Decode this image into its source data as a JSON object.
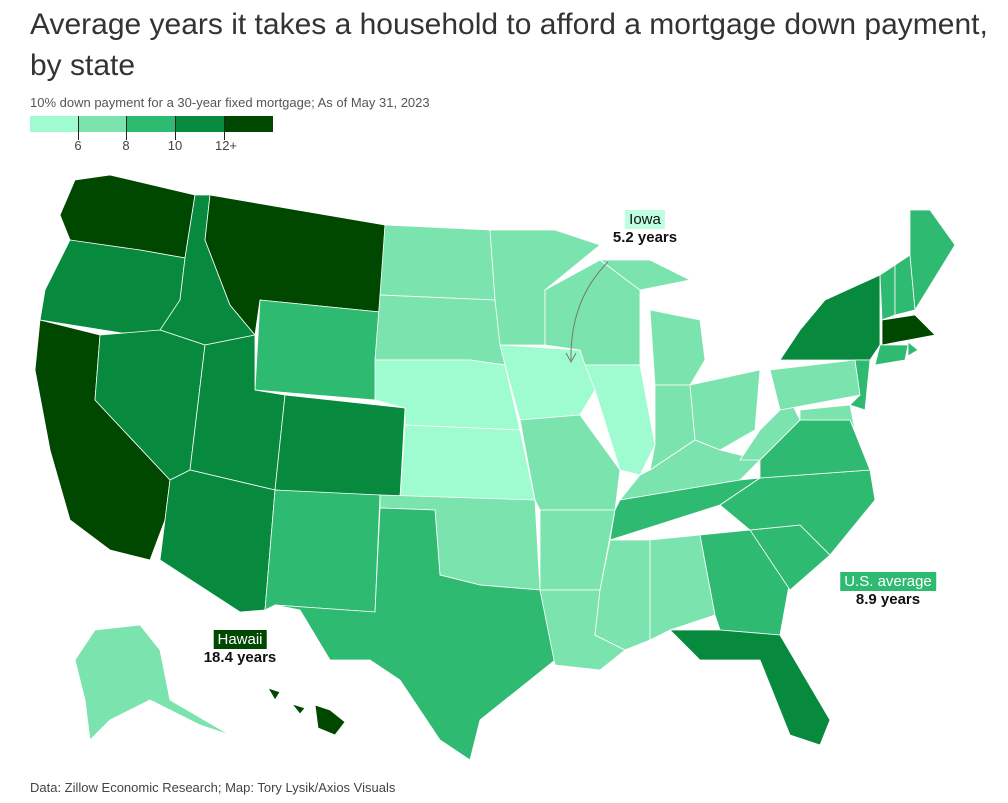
{
  "title": "Average years it takes a household to afford a mortgage down payment, by state",
  "subtitle": "10% down payment for a 30-year fixed mortgage; As of May 31, 2023",
  "legend": {
    "colors": [
      "#9ffcd0",
      "#7be3ae",
      "#2fba72",
      "#088a3e",
      "#004700"
    ],
    "ticks": [
      "6",
      "8",
      "10",
      "12+"
    ]
  },
  "states": {
    "WA": 4,
    "OR": 3,
    "CA": 4,
    "ID": 3,
    "NV": 3,
    "MT": 4,
    "WY": 2,
    "UT": 3,
    "CO": 3,
    "AZ": 3,
    "NM": 2,
    "ND": 1,
    "SD": 1,
    "NE": 0,
    "KS": 0,
    "OK": 1,
    "TX": 2,
    "MN": 1,
    "IA": 0,
    "MO": 1,
    "AR": 1,
    "LA": 1,
    "WI": 1,
    "IL": 0,
    "MI": 1,
    "MI_UP": 1,
    "IN": 1,
    "OH": 1,
    "KY": 1,
    "TN": 2,
    "MS": 1,
    "AL": 1,
    "GA": 2,
    "FL": 3,
    "SC": 2,
    "NC": 2,
    "VA": 2,
    "WV": 1,
    "PA": 1,
    "NY": 3,
    "NJ": 2,
    "MD": 1,
    "VT": 2,
    "NH": 2,
    "ME": 2,
    "MA": 4,
    "CT": 2,
    "RI": 2,
    "AK": 1,
    "HI": 4
  },
  "annotations": {
    "iowa": {
      "name": "Iowa",
      "value": "5.2 years"
    },
    "hawaii": {
      "name": "Hawaii",
      "value": "18.4 years"
    },
    "us": {
      "name": "U.S. average",
      "value": "8.9 years"
    }
  },
  "footer": "Data: Zillow Economic Research; Map: Tory Lysik/Axios Visuals"
}
